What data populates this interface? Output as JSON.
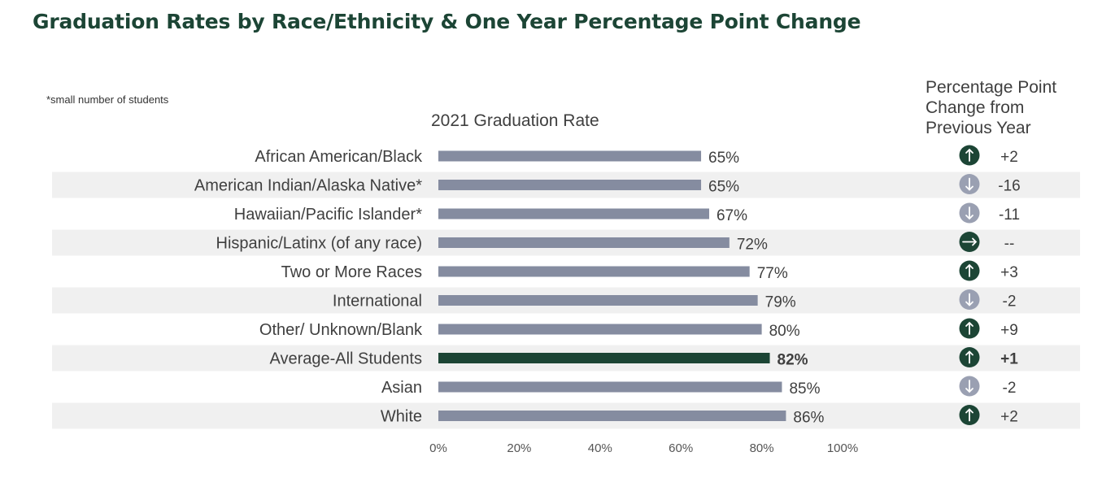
{
  "title": "Graduation Rates by Race/Ethnicity & One Year Percentage Point Change",
  "note": "*small number of students",
  "chart_subtitle": "2021 Graduation Rate",
  "change_header": [
    "Percentage Point",
    "Change from",
    "Previous Year"
  ],
  "colors": {
    "title": "#1c4535",
    "bar": "#858ca0",
    "highlight_bar": "#1c4535",
    "row_band": "#f0f0f0",
    "arrow_up": "#1c4535",
    "arrow_down": "#9aa0b2",
    "arrow_flat": "#1c4535"
  },
  "chart_data": {
    "type": "bar",
    "orientation": "horizontal",
    "categories": [
      "African American/Black",
      "American Indian/Alaska Native*",
      "Hawaiian/Pacific Islander*",
      "Hispanic/Latinx (of  any race)",
      "Two or More Races",
      "International",
      "Other/ Unknown/Blank",
      "Average-All Students",
      "Asian",
      "White"
    ],
    "values": [
      65,
      65,
      67,
      72,
      77,
      79,
      80,
      82,
      85,
      86
    ],
    "value_labels": [
      "65%",
      "65%",
      "67%",
      "72%",
      "77%",
      "79%",
      "80%",
      "82%",
      "85%",
      "86%"
    ],
    "highlight_category": "Average-All Students",
    "xlim": [
      0,
      100
    ],
    "x_ticks": [
      "0%",
      "20%",
      "40%",
      "60%",
      "80%",
      "100%"
    ],
    "change_values": [
      "+2",
      "-16",
      "-11",
      "--",
      "+3",
      "-2",
      "+9",
      "+1",
      "-2",
      "+2"
    ],
    "change_direction": [
      "up",
      "down",
      "down",
      "flat",
      "up",
      "down",
      "up",
      "up",
      "down",
      "up"
    ],
    "banded_rows": [
      false,
      true,
      false,
      true,
      false,
      true,
      false,
      true,
      false,
      true
    ]
  }
}
